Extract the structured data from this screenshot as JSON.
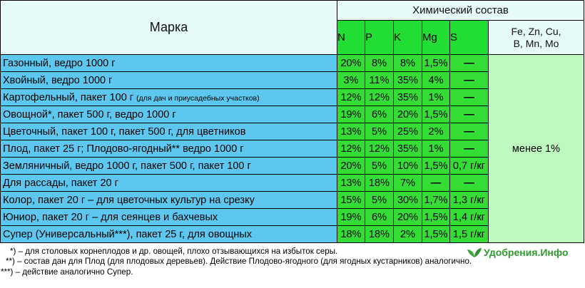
{
  "header": {
    "brand": "Марка",
    "chem": "Химический состав",
    "elements": [
      "N",
      "P",
      "K",
      "Mg",
      "S"
    ],
    "other_line1": "Fe, Zn, Cu,",
    "other_line2": "B, Mn, Mo"
  },
  "other_value": "менее 1%",
  "rows": [
    {
      "name": "Газонный, ведро 1000 г",
      "note": "",
      "values": [
        "20%",
        "8%",
        "8%",
        "1,5%",
        "—"
      ]
    },
    {
      "name": "Хвойный, ведро 1000 г",
      "note": "",
      "values": [
        "3%",
        "11%",
        "35%",
        "4%",
        "—"
      ]
    },
    {
      "name": "Картофельный, пакет 100 г ",
      "note": "(для дач  и приусадебных участков)",
      "values": [
        "12%",
        "12%",
        "35%",
        "1%",
        "—"
      ]
    },
    {
      "name": "Овощной*, пакет 500 г, ведро 1000 г",
      "note": "",
      "values": [
        "19%",
        "6%",
        "20%",
        "1,5%",
        "—"
      ]
    },
    {
      "name": "Цветочный, пакет 100 г, пакет 500 г, для цветников",
      "note": "",
      "values": [
        "13%",
        "5%",
        "25%",
        "2%",
        "—"
      ]
    },
    {
      "name": "Плод, пакет 25 г; Плодово-ягодный** ведро 1000 г",
      "note": "",
      "values": [
        "12%",
        "12%",
        "35%",
        "1%",
        "—"
      ]
    },
    {
      "name": "Земляничный, ведро 1000 г, пакет 500 г, пакет 100 г",
      "note": "",
      "values": [
        "20%",
        "5%",
        "10%",
        "1,5%",
        "0,7 г/кг"
      ]
    },
    {
      "name": "Для рассады, пакет 20 г",
      "note": "",
      "values": [
        "13%",
        "18%",
        "7%",
        "—",
        "—"
      ]
    },
    {
      "name": "Колор, пакет 20 г – для цветочных культур на срезку",
      "note": "",
      "values": [
        "15%",
        "5%",
        "30%",
        "1,7%",
        "1,3 г/кг"
      ]
    },
    {
      "name": "Юниор, пакет 20 г – для сеянцев и бахчевых",
      "note": "",
      "values": [
        "19%",
        "6%",
        "20%",
        "1,5%",
        "1,4 г/кг"
      ]
    },
    {
      "name": "Супер (Универсальный***), пакет 25 г, для овощных",
      "note": "",
      "values": [
        "18%",
        "18%",
        "2%",
        "1,5%",
        "1,5 г/кг"
      ]
    }
  ],
  "footnotes": [
    "*) – для столовых корнеплодов и др. овощей, плохо отзывающихся на избыток серы.",
    "**) – состав дан для Плод (для плодовых деревьев). Действие Плодово-ягодного (для ягодных кустарников) аналогично.",
    "***) – действие аналогично Супер."
  ],
  "logo_text": "Удобрения.Инфо",
  "colors": {
    "header_bg": "#e6fafa",
    "name_bg": "#5cc8f0",
    "value_bg": "#33dd33",
    "other_bg": "#bdfabd",
    "logo": "#2e9b2e"
  }
}
